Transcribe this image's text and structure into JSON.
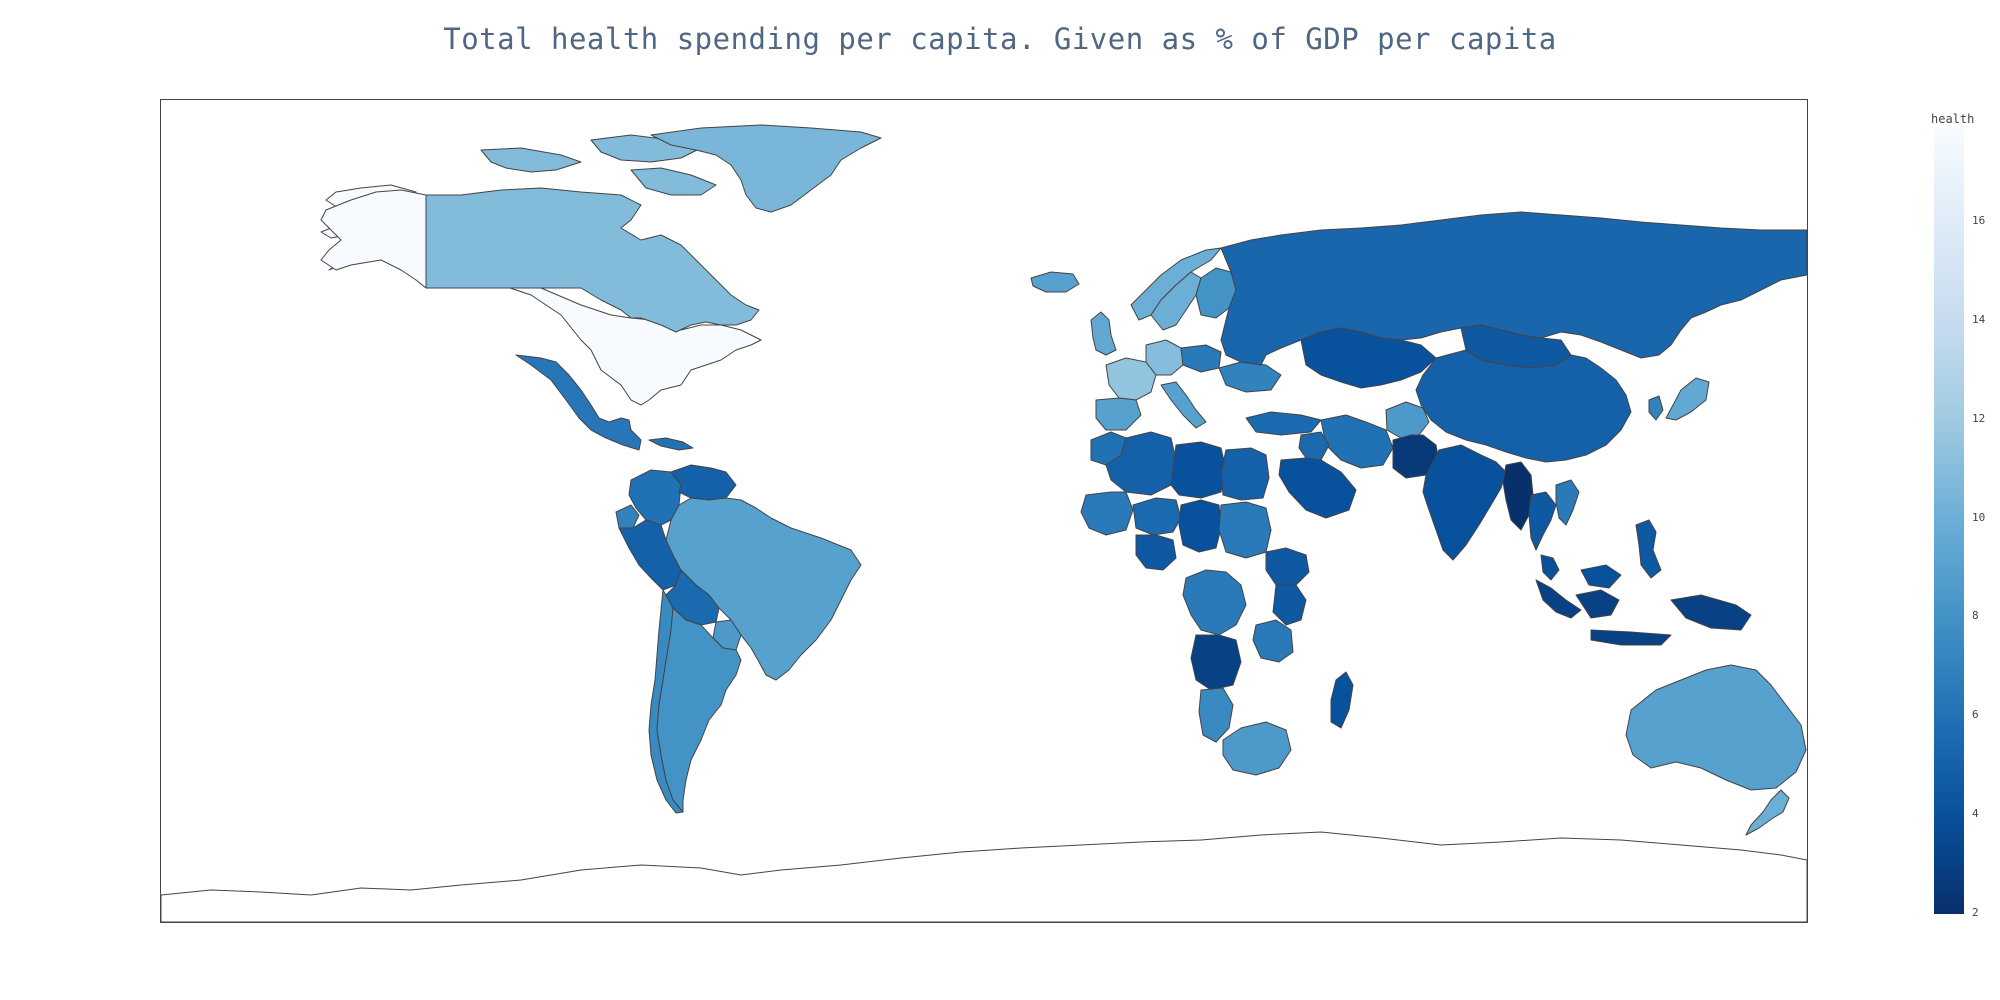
{
  "title": "Total health spending per capita. Given as % of GDP per capita",
  "colorbar": {
    "title": "health",
    "min": 2,
    "max": 17.9,
    "colorscale": "Blues (reversed)",
    "colors": [
      "#08306b",
      "#08519c",
      "#2171b5",
      "#4292c6",
      "#6baed6",
      "#9ecae1",
      "#c6dbef",
      "#deebf7",
      "#f7fbff"
    ],
    "ticks": [
      2,
      4,
      6,
      8,
      10,
      12,
      14,
      16
    ]
  },
  "map": {
    "projection": "equirectangular",
    "lon_range": [
      -180,
      180
    ],
    "lat_range": [
      -90,
      90
    ],
    "missing_color": "#ffffff",
    "border_color": "#444444"
  },
  "chart_data": {
    "type": "choropleth",
    "title": "Total health spending per capita. Given as % of GDP per capita",
    "colorbar_title": "health",
    "range": [
      2,
      17.9
    ],
    "values": [
      {
        "name": "United States",
        "value": 17.9
      },
      {
        "name": "Canada",
        "value": 10.9
      },
      {
        "name": "Brazil",
        "value": 9.0
      },
      {
        "name": "Argentina",
        "value": 8.0
      },
      {
        "name": "Chile",
        "value": 7.5
      },
      {
        "name": "Peru",
        "value": 5.0
      },
      {
        "name": "Colombia",
        "value": 6.0
      },
      {
        "name": "Venezuela",
        "value": 5.0
      },
      {
        "name": "Bolivia",
        "value": 5.5
      },
      {
        "name": "Ecuador",
        "value": 7.0
      },
      {
        "name": "Paraguay",
        "value": 8.5
      },
      {
        "name": "Mexico",
        "value": 6.3
      },
      {
        "name": "Cuba",
        "value": 6.0
      },
      {
        "name": "Greenland",
        "value": 10.5
      },
      {
        "name": "Iceland",
        "value": 9.0
      },
      {
        "name": "United Kingdom",
        "value": 9.5
      },
      {
        "name": "France",
        "value": 11.5
      },
      {
        "name": "Germany",
        "value": 11.0
      },
      {
        "name": "Spain",
        "value": 9.0
      },
      {
        "name": "Italy",
        "value": 9.0
      },
      {
        "name": "Norway",
        "value": 10.0
      },
      {
        "name": "Sweden",
        "value": 10.0
      },
      {
        "name": "Finland",
        "value": 8.0
      },
      {
        "name": "Poland",
        "value": 6.5
      },
      {
        "name": "Ukraine",
        "value": 7.0
      },
      {
        "name": "Turkey",
        "value": 5.5
      },
      {
        "name": "Russia",
        "value": 5.3
      },
      {
        "name": "Kazakhstan",
        "value": 4.0
      },
      {
        "name": "Mongolia",
        "value": 4.5
      },
      {
        "name": "China",
        "value": 5.0
      },
      {
        "name": "India",
        "value": 4.0
      },
      {
        "name": "Pakistan",
        "value": 2.6
      },
      {
        "name": "Afghanistan",
        "value": 8.5
      },
      {
        "name": "Iran",
        "value": 6.0
      },
      {
        "name": "Iraq",
        "value": 5.5
      },
      {
        "name": "Saudi Arabia",
        "value": 4.0
      },
      {
        "name": "Myanmar",
        "value": 2.0
      },
      {
        "name": "Thailand",
        "value": 4.5
      },
      {
        "name": "Vietnam",
        "value": 6.5
      },
      {
        "name": "Japan",
        "value": 9.5
      },
      {
        "name": "South Korea",
        "value": 7.0
      },
      {
        "name": "Indonesia",
        "value": 3.0
      },
      {
        "name": "Philippines",
        "value": 4.5
      },
      {
        "name": "Malaysia",
        "value": 4.0
      },
      {
        "name": "Australia",
        "value": 9.0
      },
      {
        "name": "New Zealand",
        "value": 10.0
      },
      {
        "name": "Egypt",
        "value": 5.0
      },
      {
        "name": "Libya",
        "value": 4.0
      },
      {
        "name": "Algeria",
        "value": 5.0
      },
      {
        "name": "Morocco",
        "value": 6.0
      },
      {
        "name": "Sudan",
        "value": 6.5
      },
      {
        "name": "Ethiopia",
        "value": 4.5
      },
      {
        "name": "Kenya",
        "value": 4.5
      },
      {
        "name": "Angola",
        "value": 3.0
      },
      {
        "name": "DR Congo",
        "value": 6.5
      },
      {
        "name": "South Africa",
        "value": 8.5
      },
      {
        "name": "Namibia",
        "value": 7.5
      },
      {
        "name": "Tanzania",
        "value": 6.5
      },
      {
        "name": "Madagascar",
        "value": 4.0
      },
      {
        "name": "Nigeria",
        "value": 4.5
      },
      {
        "name": "Chad",
        "value": 4.0
      },
      {
        "name": "Mali",
        "value": 6.5
      },
      {
        "name": "Niger",
        "value": 5.5
      }
    ]
  }
}
